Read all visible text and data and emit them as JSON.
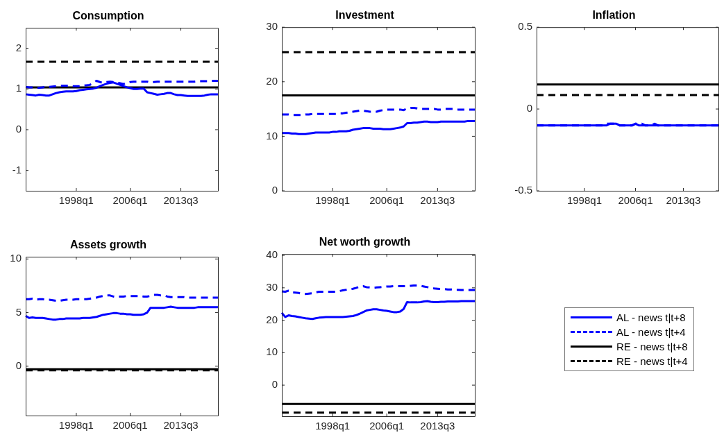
{
  "chart_data": [
    {
      "type": "line",
      "title": "Consumption",
      "ylim": [
        -1.5,
        2.5
      ],
      "yticks": [
        -1,
        0,
        1,
        2
      ],
      "categories": [
        null,
        null,
        null,
        null,
        null,
        null,
        null,
        null,
        null,
        null,
        null,
        null,
        null,
        null,
        null,
        "1998q1",
        null,
        null,
        null,
        null,
        null,
        null,
        null,
        null,
        null,
        null,
        null,
        null,
        null,
        null,
        null,
        "2006q1",
        null,
        null,
        null,
        null,
        null,
        null,
        null,
        null,
        null,
        null,
        null,
        null,
        null,
        null,
        "2013q3",
        null,
        null,
        null,
        null,
        null,
        null,
        null,
        null,
        null,
        null,
        null
      ],
      "series": [
        {
          "color": "#0000ff",
          "line_style": "solid",
          "values": [
            0.87,
            0.86,
            0.85,
            0.84,
            0.86,
            0.85,
            0.84,
            0.84,
            0.87,
            0.9,
            0.92,
            0.93,
            0.94,
            0.94,
            0.94,
            0.95,
            0.97,
            0.98,
            0.99,
            1.0,
            1.01,
            1.03,
            1.07,
            1.1,
            1.13,
            1.15,
            1.16,
            1.13,
            1.1,
            1.07,
            1.04,
            1.02,
            1.0,
            1.0,
            1.01,
            1.01,
            0.92,
            0.9,
            0.88,
            0.86,
            0.87,
            0.88,
            0.9,
            0.9,
            0.87,
            0.85,
            0.85,
            0.84,
            0.83,
            0.83,
            0.83,
            0.83,
            0.83,
            0.84,
            0.86,
            0.87,
            0.87,
            0.87
          ]
        },
        {
          "color": "#0000ff",
          "line_style": "dashed",
          "values": [
            1.05,
            1.04,
            1.04,
            1.03,
            1.03,
            1.04,
            1.05,
            1.05,
            1.06,
            1.07,
            1.08,
            1.08,
            1.08,
            1.08,
            1.07,
            1.07,
            1.07,
            1.08,
            1.09,
            1.1,
            1.15,
            1.2,
            1.17,
            1.15,
            1.17,
            1.18,
            1.17,
            1.16,
            1.14,
            1.12,
            1.15,
            1.17,
            1.18,
            1.18,
            1.18,
            1.18,
            1.18,
            1.16,
            1.17,
            1.18,
            1.18,
            1.18,
            1.18,
            1.18,
            1.18,
            1.18,
            1.18,
            1.18,
            1.18,
            1.18,
            1.18,
            1.19,
            1.19,
            1.19,
            1.19,
            1.2,
            1.2,
            1.2
          ]
        },
        {
          "color": "#000000",
          "line_style": "solid",
          "values": [
            1.04,
            1.04,
            1.04,
            1.04,
            1.04,
            1.04,
            1.04,
            1.04,
            1.04,
            1.04,
            1.04,
            1.04,
            1.04,
            1.04,
            1.04,
            1.04,
            1.04,
            1.04,
            1.04,
            1.04,
            1.04,
            1.04,
            1.04,
            1.04,
            1.04,
            1.04,
            1.04,
            1.04,
            1.04,
            1.04,
            1.04,
            1.04,
            1.04,
            1.04,
            1.04,
            1.04,
            1.04,
            1.04,
            1.04,
            1.04,
            1.04,
            1.04,
            1.04,
            1.04,
            1.04,
            1.04,
            1.04,
            1.04,
            1.04,
            1.04,
            1.04,
            1.04,
            1.04,
            1.04,
            1.04,
            1.04,
            1.04,
            1.04
          ]
        },
        {
          "color": "#000000",
          "line_style": "dashed",
          "values": [
            1.67,
            1.67,
            1.67,
            1.67,
            1.67,
            1.67,
            1.67,
            1.67,
            1.67,
            1.67,
            1.67,
            1.67,
            1.67,
            1.67,
            1.67,
            1.67,
            1.67,
            1.67,
            1.67,
            1.67,
            1.67,
            1.67,
            1.67,
            1.67,
            1.67,
            1.67,
            1.67,
            1.67,
            1.67,
            1.67,
            1.67,
            1.67,
            1.67,
            1.67,
            1.67,
            1.67,
            1.67,
            1.67,
            1.67,
            1.67,
            1.67,
            1.67,
            1.67,
            1.67,
            1.67,
            1.67,
            1.67,
            1.67,
            1.67,
            1.67,
            1.67,
            1.67,
            1.67,
            1.67,
            1.67,
            1.67,
            1.67,
            1.67
          ]
        }
      ]
    },
    {
      "type": "line",
      "title": "Investment",
      "ylim": [
        0,
        30
      ],
      "yticks": [
        0,
        10,
        20,
        30
      ],
      "categories": [
        null,
        null,
        null,
        null,
        null,
        null,
        null,
        null,
        null,
        null,
        null,
        null,
        null,
        null,
        null,
        "1998q1",
        null,
        null,
        null,
        null,
        null,
        null,
        null,
        null,
        null,
        null,
        null,
        null,
        null,
        null,
        null,
        "2006q1",
        null,
        null,
        null,
        null,
        null,
        null,
        null,
        null,
        null,
        null,
        null,
        null,
        null,
        null,
        "2013q3",
        null,
        null,
        null,
        null,
        null,
        null,
        null,
        null,
        null,
        null,
        null
      ],
      "series": [
        {
          "color": "#0000ff",
          "line_style": "solid",
          "values": [
            10.6,
            10.6,
            10.6,
            10.5,
            10.5,
            10.4,
            10.4,
            10.4,
            10.5,
            10.6,
            10.7,
            10.7,
            10.7,
            10.7,
            10.7,
            10.8,
            10.8,
            10.9,
            10.9,
            10.9,
            11.0,
            11.2,
            11.3,
            11.4,
            11.5,
            11.5,
            11.5,
            11.4,
            11.4,
            11.4,
            11.3,
            11.3,
            11.3,
            11.4,
            11.5,
            11.6,
            11.8,
            12.4,
            12.4,
            12.5,
            12.5,
            12.6,
            12.7,
            12.7,
            12.6,
            12.6,
            12.6,
            12.7,
            12.7,
            12.7,
            12.7,
            12.7,
            12.7,
            12.7,
            12.7,
            12.8,
            12.8,
            12.8
          ]
        },
        {
          "color": "#0000ff",
          "line_style": "dashed",
          "values": [
            14.0,
            14.0,
            14.0,
            13.9,
            13.9,
            13.9,
            13.9,
            14.0,
            14.0,
            14.1,
            14.1,
            14.1,
            14.1,
            14.1,
            14.1,
            14.1,
            14.1,
            14.2,
            14.2,
            14.3,
            14.4,
            14.5,
            14.6,
            14.7,
            14.7,
            14.6,
            14.5,
            14.5,
            14.5,
            14.7,
            14.8,
            14.9,
            14.9,
            14.9,
            14.9,
            14.9,
            14.8,
            15.1,
            15.2,
            15.2,
            15.1,
            15.0,
            15.0,
            15.0,
            15.0,
            15.0,
            14.9,
            14.9,
            15.0,
            15.0,
            15.0,
            15.0,
            14.9,
            14.9,
            14.9,
            14.9,
            14.9,
            14.9
          ]
        },
        {
          "color": "#000000",
          "line_style": "solid",
          "values": [
            17.5,
            17.5,
            17.5,
            17.5,
            17.5,
            17.5,
            17.5,
            17.5,
            17.5,
            17.5,
            17.5,
            17.5,
            17.5,
            17.5,
            17.5,
            17.5,
            17.5,
            17.5,
            17.5,
            17.5,
            17.5,
            17.5,
            17.5,
            17.5,
            17.5,
            17.5,
            17.5,
            17.5,
            17.5,
            17.5,
            17.5,
            17.5,
            17.5,
            17.5,
            17.5,
            17.5,
            17.5,
            17.5,
            17.5,
            17.5,
            17.5,
            17.5,
            17.5,
            17.5,
            17.5,
            17.5,
            17.5,
            17.5,
            17.5,
            17.5,
            17.5,
            17.5,
            17.5,
            17.5,
            17.5,
            17.5,
            17.5,
            17.5
          ]
        },
        {
          "color": "#000000",
          "line_style": "dashed",
          "values": [
            25.4,
            25.4,
            25.4,
            25.4,
            25.4,
            25.4,
            25.4,
            25.4,
            25.4,
            25.4,
            25.4,
            25.4,
            25.4,
            25.4,
            25.4,
            25.4,
            25.4,
            25.4,
            25.4,
            25.4,
            25.4,
            25.4,
            25.4,
            25.4,
            25.4,
            25.4,
            25.4,
            25.4,
            25.4,
            25.4,
            25.4,
            25.4,
            25.4,
            25.4,
            25.4,
            25.4,
            25.4,
            25.4,
            25.4,
            25.4,
            25.4,
            25.4,
            25.4,
            25.4,
            25.4,
            25.4,
            25.4,
            25.4,
            25.4,
            25.4,
            25.4,
            25.4,
            25.4,
            25.4,
            25.4,
            25.4,
            25.4,
            25.4
          ]
        }
      ]
    },
    {
      "type": "line",
      "title": "Inflation",
      "ylim": [
        -0.5,
        0.5
      ],
      "yticks": [
        -0.5,
        0,
        0.5
      ],
      "categories": [
        null,
        null,
        null,
        null,
        null,
        null,
        null,
        null,
        null,
        null,
        null,
        null,
        null,
        null,
        null,
        "1998q1",
        null,
        null,
        null,
        null,
        null,
        null,
        null,
        null,
        null,
        null,
        null,
        null,
        null,
        null,
        null,
        "2006q1",
        null,
        null,
        null,
        null,
        null,
        null,
        null,
        null,
        null,
        null,
        null,
        null,
        null,
        null,
        "2013q3",
        null,
        null,
        null,
        null,
        null,
        null,
        null,
        null,
        null,
        null,
        null
      ],
      "series": [
        {
          "color": "#0000ff",
          "line_style": "solid",
          "values": [
            -0.1,
            -0.1,
            -0.1,
            -0.1,
            -0.1,
            -0.1,
            -0.1,
            -0.1,
            -0.1,
            -0.1,
            -0.1,
            -0.1,
            -0.1,
            -0.1,
            -0.1,
            -0.1,
            -0.1,
            -0.1,
            -0.1,
            -0.1,
            -0.1,
            -0.1,
            -0.1,
            -0.09,
            -0.09,
            -0.09,
            -0.1,
            -0.1,
            -0.1,
            -0.1,
            -0.1,
            -0.09,
            -0.1,
            -0.1,
            -0.1,
            -0.1,
            -0.1,
            -0.1,
            -0.1,
            -0.1,
            -0.1,
            -0.1,
            -0.1,
            -0.1,
            -0.1,
            -0.1,
            -0.1,
            -0.1,
            -0.1,
            -0.1,
            -0.1,
            -0.1,
            -0.1,
            -0.1,
            -0.1,
            -0.1,
            -0.1,
            -0.1
          ]
        },
        {
          "color": "#0000ff",
          "line_style": "dashed",
          "values": [
            -0.1,
            -0.1,
            -0.1,
            -0.1,
            -0.1,
            -0.1,
            -0.1,
            -0.1,
            -0.1,
            -0.1,
            -0.1,
            -0.1,
            -0.1,
            -0.1,
            -0.1,
            -0.1,
            -0.1,
            -0.1,
            -0.1,
            -0.1,
            -0.1,
            -0.1,
            -0.09,
            -0.09,
            -0.09,
            -0.09,
            -0.1,
            -0.1,
            -0.1,
            -0.1,
            -0.1,
            -0.09,
            -0.09,
            -0.09,
            -0.1,
            -0.1,
            -0.1,
            -0.09,
            -0.1,
            -0.1,
            -0.1,
            -0.1,
            -0.1,
            -0.1,
            -0.1,
            -0.1,
            -0.1,
            -0.1,
            -0.1,
            -0.1,
            -0.1,
            -0.1,
            -0.1,
            -0.1,
            -0.1,
            -0.1,
            -0.1,
            -0.1
          ]
        },
        {
          "color": "#000000",
          "line_style": "solid",
          "values": [
            0.15,
            0.15,
            0.15,
            0.15,
            0.15,
            0.15,
            0.15,
            0.15,
            0.15,
            0.15,
            0.15,
            0.15,
            0.15,
            0.15,
            0.15,
            0.15,
            0.15,
            0.15,
            0.15,
            0.15,
            0.15,
            0.15,
            0.15,
            0.15,
            0.15,
            0.15,
            0.15,
            0.15,
            0.15,
            0.15,
            0.15,
            0.15,
            0.15,
            0.15,
            0.15,
            0.15,
            0.15,
            0.15,
            0.15,
            0.15,
            0.15,
            0.15,
            0.15,
            0.15,
            0.15,
            0.15,
            0.15,
            0.15,
            0.15,
            0.15,
            0.15,
            0.15,
            0.15,
            0.15,
            0.15,
            0.15,
            0.15,
            0.15
          ]
        },
        {
          "color": "#000000",
          "line_style": "dashed",
          "values": [
            0.085,
            0.085,
            0.085,
            0.085,
            0.085,
            0.085,
            0.085,
            0.085,
            0.085,
            0.085,
            0.085,
            0.085,
            0.085,
            0.085,
            0.085,
            0.085,
            0.085,
            0.085,
            0.085,
            0.085,
            0.085,
            0.085,
            0.085,
            0.085,
            0.085,
            0.085,
            0.085,
            0.085,
            0.085,
            0.085,
            0.085,
            0.085,
            0.085,
            0.085,
            0.085,
            0.085,
            0.085,
            0.085,
            0.085,
            0.085,
            0.085,
            0.085,
            0.085,
            0.085,
            0.085,
            0.085,
            0.085,
            0.085,
            0.085,
            0.085,
            0.085,
            0.085,
            0.085,
            0.085,
            0.085,
            0.085,
            0.085,
            0.085
          ]
        }
      ]
    },
    {
      "type": "line",
      "title": "Assets growth",
      "ylim": [
        -4.6,
        10.2
      ],
      "yticks": [
        0,
        5,
        10
      ],
      "categories": [
        null,
        null,
        null,
        null,
        null,
        null,
        null,
        null,
        null,
        null,
        null,
        null,
        null,
        null,
        null,
        "1998q1",
        null,
        null,
        null,
        null,
        null,
        null,
        null,
        null,
        null,
        null,
        null,
        null,
        null,
        null,
        null,
        "2006q1",
        null,
        null,
        null,
        null,
        null,
        null,
        null,
        null,
        null,
        null,
        null,
        null,
        null,
        null,
        "2013q3",
        null,
        null,
        null,
        null,
        null,
        null,
        null,
        null,
        null,
        null,
        null
      ],
      "series": [
        {
          "color": "#0000ff",
          "line_style": "solid",
          "values": [
            4.7,
            4.5,
            4.55,
            4.5,
            4.5,
            4.5,
            4.45,
            4.4,
            4.35,
            4.35,
            4.4,
            4.4,
            4.45,
            4.45,
            4.45,
            4.45,
            4.45,
            4.5,
            4.5,
            4.5,
            4.55,
            4.6,
            4.7,
            4.8,
            4.85,
            4.9,
            4.95,
            4.95,
            4.9,
            4.9,
            4.85,
            4.85,
            4.8,
            4.8,
            4.8,
            4.85,
            5.0,
            5.45,
            5.45,
            5.45,
            5.45,
            5.45,
            5.5,
            5.55,
            5.5,
            5.45,
            5.45,
            5.45,
            5.45,
            5.45,
            5.45,
            5.5,
            5.5,
            5.5,
            5.5,
            5.5,
            5.5,
            5.5
          ]
        },
        {
          "color": "#0000ff",
          "line_style": "dashed",
          "values": [
            6.25,
            6.25,
            6.3,
            6.2,
            6.25,
            6.25,
            6.2,
            6.2,
            6.15,
            6.1,
            6.1,
            6.15,
            6.2,
            6.2,
            6.2,
            6.25,
            6.25,
            6.25,
            6.25,
            6.3,
            6.35,
            6.4,
            6.5,
            6.55,
            6.6,
            6.6,
            6.5,
            6.45,
            6.5,
            6.5,
            6.55,
            6.55,
            6.55,
            6.55,
            6.55,
            6.5,
            6.5,
            6.55,
            6.65,
            6.65,
            6.6,
            6.6,
            6.5,
            6.45,
            6.45,
            6.45,
            6.45,
            6.45,
            6.4,
            6.4,
            6.4,
            6.4,
            6.4,
            6.4,
            6.4,
            6.4,
            6.4,
            6.4
          ]
        },
        {
          "color": "#000000",
          "line_style": "solid",
          "values": [
            -0.28,
            -0.28,
            -0.28,
            -0.28,
            -0.28,
            -0.28,
            -0.28,
            -0.28,
            -0.28,
            -0.28,
            -0.28,
            -0.28,
            -0.28,
            -0.28,
            -0.28,
            -0.28,
            -0.28,
            -0.28,
            -0.28,
            -0.28,
            -0.28,
            -0.28,
            -0.28,
            -0.28,
            -0.28,
            -0.28,
            -0.28,
            -0.28,
            -0.28,
            -0.28,
            -0.28,
            -0.28,
            -0.28,
            -0.28,
            -0.28,
            -0.28,
            -0.28,
            -0.28,
            -0.28,
            -0.28,
            -0.28,
            -0.28,
            -0.28,
            -0.28,
            -0.28,
            -0.28,
            -0.28,
            -0.28,
            -0.28,
            -0.28,
            -0.28,
            -0.28,
            -0.28,
            -0.28,
            -0.28,
            -0.28,
            -0.28,
            -0.28
          ]
        },
        {
          "color": "#000000",
          "line_style": "dashed",
          "values": [
            -0.38,
            -0.38,
            -0.38,
            -0.38,
            -0.38,
            -0.38,
            -0.38,
            -0.38,
            -0.38,
            -0.38,
            -0.38,
            -0.38,
            -0.38,
            -0.38,
            -0.38,
            -0.38,
            -0.38,
            -0.38,
            -0.38,
            -0.38,
            -0.38,
            -0.38,
            -0.38,
            -0.38,
            -0.38,
            -0.38,
            -0.38,
            -0.38,
            -0.38,
            -0.38,
            -0.38,
            -0.38,
            -0.38,
            -0.38,
            -0.38,
            -0.38,
            -0.38,
            -0.38,
            -0.38,
            -0.38,
            -0.38,
            -0.38,
            -0.38,
            -0.38,
            -0.38,
            -0.38,
            -0.38,
            -0.38,
            -0.38,
            -0.38,
            -0.38,
            -0.38,
            -0.38,
            -0.38,
            -0.38,
            -0.38,
            -0.38,
            -0.38
          ]
        }
      ]
    },
    {
      "type": "line",
      "title": "Net worth growth",
      "legend": "right",
      "ylim": [
        -9.6,
        40.4
      ],
      "yticks": [
        0,
        10,
        20,
        30,
        40
      ],
      "categories": [
        null,
        null,
        null,
        null,
        null,
        null,
        null,
        null,
        null,
        null,
        null,
        null,
        null,
        null,
        null,
        "1998q1",
        null,
        null,
        null,
        null,
        null,
        null,
        null,
        null,
        null,
        null,
        null,
        null,
        null,
        null,
        null,
        "2006q1",
        null,
        null,
        null,
        null,
        null,
        null,
        null,
        null,
        null,
        null,
        null,
        null,
        null,
        null,
        "2013q3",
        null,
        null,
        null,
        null,
        null,
        null,
        null,
        null,
        null,
        null,
        null
      ],
      "series": [
        {
          "name": "AL - news t|t+8",
          "color": "#0000ff",
          "line_style": "solid",
          "values": [
            22.3,
            21.0,
            21.5,
            21.3,
            21.2,
            21.0,
            20.8,
            20.6,
            20.5,
            20.4,
            20.6,
            20.8,
            20.9,
            21.0,
            21.0,
            21.0,
            21.0,
            21.0,
            21.0,
            21.1,
            21.2,
            21.3,
            21.6,
            22.0,
            22.5,
            23.0,
            23.2,
            23.4,
            23.4,
            23.2,
            23.0,
            22.9,
            22.7,
            22.5,
            22.5,
            22.7,
            23.5,
            25.6,
            25.5,
            25.5,
            25.5,
            25.6,
            25.8,
            25.9,
            25.7,
            25.6,
            25.6,
            25.7,
            25.7,
            25.8,
            25.8,
            25.8,
            25.8,
            25.9,
            25.9,
            25.9,
            25.9,
            25.9
          ]
        },
        {
          "name": "AL - news t|t+4",
          "color": "#0000ff",
          "line_style": "dashed",
          "values": [
            28.9,
            28.8,
            29.1,
            28.6,
            28.5,
            28.4,
            28.2,
            28.1,
            28.2,
            28.3,
            28.6,
            28.8,
            28.8,
            28.8,
            28.8,
            28.8,
            28.8,
            29.0,
            29.2,
            29.4,
            29.6,
            29.7,
            30.0,
            30.4,
            30.5,
            30.2,
            30.1,
            30.0,
            30.1,
            30.2,
            30.3,
            30.4,
            30.4,
            30.5,
            30.5,
            30.5,
            30.5,
            30.5,
            30.6,
            30.7,
            30.7,
            30.6,
            30.4,
            30.2,
            30.0,
            29.8,
            29.7,
            29.6,
            29.6,
            29.5,
            29.5,
            29.4,
            29.4,
            29.3,
            29.3,
            29.3,
            29.3,
            29.3
          ]
        },
        {
          "name": "RE - news t|t+8",
          "color": "#000000",
          "line_style": "solid",
          "values": [
            -5.8,
            -5.8,
            -5.8,
            -5.8,
            -5.8,
            -5.8,
            -5.8,
            -5.8,
            -5.8,
            -5.8,
            -5.8,
            -5.8,
            -5.8,
            -5.8,
            -5.8,
            -5.8,
            -5.8,
            -5.8,
            -5.8,
            -5.8,
            -5.8,
            -5.8,
            -5.8,
            -5.8,
            -5.8,
            -5.8,
            -5.8,
            -5.8,
            -5.8,
            -5.8,
            -5.8,
            -5.8,
            -5.8,
            -5.8,
            -5.8,
            -5.8,
            -5.8,
            -5.8,
            -5.8,
            -5.8,
            -5.8,
            -5.8,
            -5.8,
            -5.8,
            -5.8,
            -5.8,
            -5.8,
            -5.8,
            -5.8,
            -5.8,
            -5.8,
            -5.8,
            -5.8,
            -5.8,
            -5.8,
            -5.8,
            -5.8,
            -5.8
          ]
        },
        {
          "name": "RE - news t|t+4",
          "color": "#000000",
          "line_style": "dashed",
          "values": [
            -8.5,
            -8.5,
            -8.5,
            -8.5,
            -8.5,
            -8.5,
            -8.5,
            -8.5,
            -8.5,
            -8.5,
            -8.5,
            -8.5,
            -8.5,
            -8.5,
            -8.5,
            -8.5,
            -8.5,
            -8.5,
            -8.5,
            -8.5,
            -8.5,
            -8.5,
            -8.5,
            -8.5,
            -8.5,
            -8.5,
            -8.5,
            -8.5,
            -8.5,
            -8.5,
            -8.5,
            -8.5,
            -8.5,
            -8.5,
            -8.5,
            -8.5,
            -8.5,
            -8.5,
            -8.5,
            -8.5,
            -8.5,
            -8.5,
            -8.5,
            -8.5,
            -8.5,
            -8.5,
            -8.5,
            -8.5,
            -8.5,
            -8.5,
            -8.5,
            -8.5,
            -8.5,
            -8.5,
            -8.5,
            -8.5,
            -8.5,
            -8.5
          ]
        }
      ]
    }
  ]
}
